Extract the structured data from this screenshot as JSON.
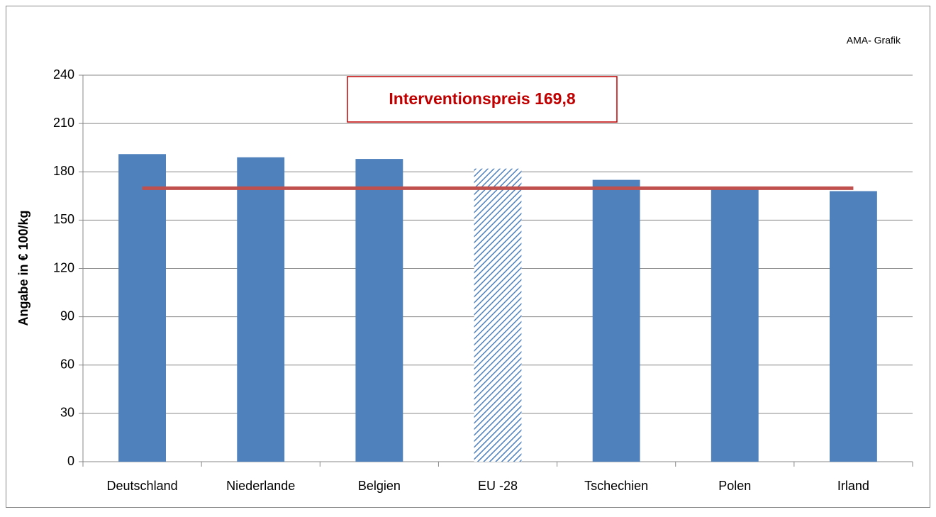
{
  "chart_data": {
    "type": "bar",
    "source_note": "AMA- Grafik",
    "y_label": "Angabe in € 100/kg",
    "categories": [
      "Deutschland",
      "Niederlande",
      "Belgien",
      "EU -28",
      "Tschechien",
      "Polen",
      "Irland"
    ],
    "values": [
      191,
      189,
      188,
      182,
      175,
      170,
      168
    ],
    "hatched": [
      false,
      false,
      false,
      true,
      false,
      false,
      false
    ],
    "color": "#4f81bd",
    "ylim": [
      0,
      240
    ],
    "yticks": [
      0,
      30,
      60,
      90,
      120,
      150,
      180,
      210,
      240
    ],
    "grid": true,
    "reference_line": {
      "value": 169.8,
      "label": "Interventionspreis 169,8",
      "color": "#c0504d"
    }
  }
}
